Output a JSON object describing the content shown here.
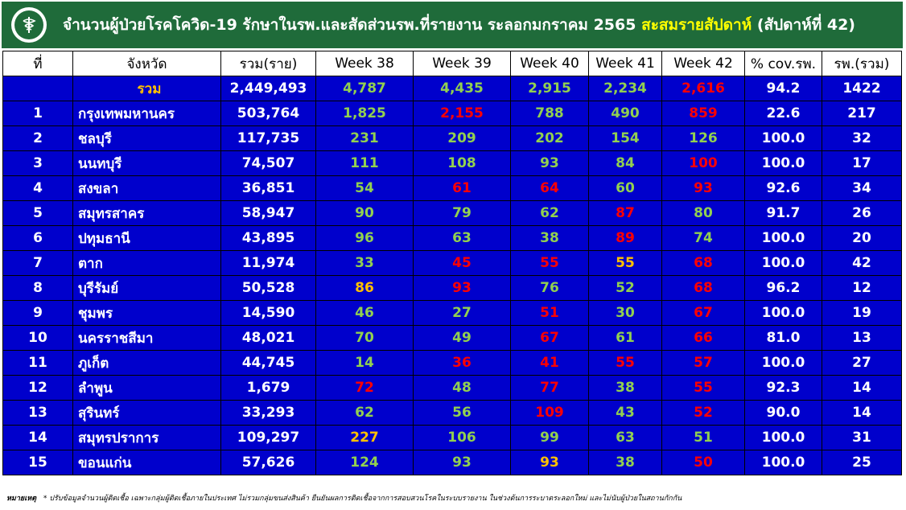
{
  "header": {
    "title_main": "จำนวนผู้ป่วยโรคโควิด-19 รักษาในรพ.และสัดส่วนรพ.ที่รายงาน ระลอกมกราคม 2565",
    "title_highlight": "สะสมรายสัปดาห์",
    "title_suffix": "(สัปดาห์ที่ 42)",
    "logo_icon": "ministry-of-public-health-logo-icon"
  },
  "colors": {
    "header_bg": "#1f6b3a",
    "table_bg": "#0000cc",
    "green": "#92d050",
    "red": "#ff0000",
    "orange": "#ffc000",
    "highlight": "#ffff00"
  },
  "table": {
    "headers": [
      "ที่",
      "จังหวัด",
      "รวม(ราย)",
      "Week 38",
      "Week 39",
      "Week 40",
      "Week 41",
      "Week 42",
      "% cov.รพ.",
      "รพ.(รวม)"
    ],
    "total": {
      "label": "รวม",
      "total": "2,449,493",
      "weeks": [
        {
          "v": "4,787",
          "c": "g"
        },
        {
          "v": "4,435",
          "c": "g"
        },
        {
          "v": "2,915",
          "c": "g"
        },
        {
          "v": "2,234",
          "c": "g"
        },
        {
          "v": "2,616",
          "c": "r"
        }
      ],
      "cov": "94.2",
      "hosp": "1422"
    },
    "rows": [
      {
        "no": "1",
        "prov": "กรุงเทพมหานคร",
        "total": "503,764",
        "weeks": [
          {
            "v": "1,825",
            "c": "g"
          },
          {
            "v": "2,155",
            "c": "r"
          },
          {
            "v": "788",
            "c": "g"
          },
          {
            "v": "490",
            "c": "g"
          },
          {
            "v": "859",
            "c": "r"
          }
        ],
        "cov": "22.6",
        "hosp": "217"
      },
      {
        "no": "2",
        "prov": "ชลบุรี",
        "total": "117,735",
        "weeks": [
          {
            "v": "231",
            "c": "g"
          },
          {
            "v": "209",
            "c": "g"
          },
          {
            "v": "202",
            "c": "g"
          },
          {
            "v": "154",
            "c": "g"
          },
          {
            "v": "126",
            "c": "g"
          }
        ],
        "cov": "100.0",
        "hosp": "32"
      },
      {
        "no": "3",
        "prov": "นนทบุรี",
        "total": "74,507",
        "weeks": [
          {
            "v": "111",
            "c": "g"
          },
          {
            "v": "108",
            "c": "g"
          },
          {
            "v": "93",
            "c": "g"
          },
          {
            "v": "84",
            "c": "g"
          },
          {
            "v": "100",
            "c": "r"
          }
        ],
        "cov": "100.0",
        "hosp": "17"
      },
      {
        "no": "4",
        "prov": "สงขลา",
        "total": "36,851",
        "weeks": [
          {
            "v": "54",
            "c": "g"
          },
          {
            "v": "61",
            "c": "r"
          },
          {
            "v": "64",
            "c": "r"
          },
          {
            "v": "60",
            "c": "g"
          },
          {
            "v": "93",
            "c": "r"
          }
        ],
        "cov": "92.6",
        "hosp": "34"
      },
      {
        "no": "5",
        "prov": "สมุทรสาคร",
        "total": "58,947",
        "weeks": [
          {
            "v": "90",
            "c": "g"
          },
          {
            "v": "79",
            "c": "g"
          },
          {
            "v": "62",
            "c": "g"
          },
          {
            "v": "87",
            "c": "r"
          },
          {
            "v": "80",
            "c": "g"
          }
        ],
        "cov": "91.7",
        "hosp": "26"
      },
      {
        "no": "6",
        "prov": "ปทุมธานี",
        "total": "43,895",
        "weeks": [
          {
            "v": "96",
            "c": "g"
          },
          {
            "v": "63",
            "c": "g"
          },
          {
            "v": "38",
            "c": "g"
          },
          {
            "v": "89",
            "c": "r"
          },
          {
            "v": "74",
            "c": "g"
          }
        ],
        "cov": "100.0",
        "hosp": "20"
      },
      {
        "no": "7",
        "prov": "ตาก",
        "total": "11,974",
        "weeks": [
          {
            "v": "33",
            "c": "g"
          },
          {
            "v": "45",
            "c": "r"
          },
          {
            "v": "55",
            "c": "r"
          },
          {
            "v": "55",
            "c": "o"
          },
          {
            "v": "68",
            "c": "r"
          }
        ],
        "cov": "100.0",
        "hosp": "42"
      },
      {
        "no": "8",
        "prov": "บุรีรัมย์",
        "total": "50,528",
        "weeks": [
          {
            "v": "86",
            "c": "o"
          },
          {
            "v": "93",
            "c": "r"
          },
          {
            "v": "76",
            "c": "g"
          },
          {
            "v": "52",
            "c": "g"
          },
          {
            "v": "68",
            "c": "r"
          }
        ],
        "cov": "96.2",
        "hosp": "12"
      },
      {
        "no": "9",
        "prov": "ชุมพร",
        "total": "14,590",
        "weeks": [
          {
            "v": "46",
            "c": "g"
          },
          {
            "v": "27",
            "c": "g"
          },
          {
            "v": "51",
            "c": "r"
          },
          {
            "v": "30",
            "c": "g"
          },
          {
            "v": "67",
            "c": "r"
          }
        ],
        "cov": "100.0",
        "hosp": "19"
      },
      {
        "no": "10",
        "prov": "นครราชสีมา",
        "total": "48,021",
        "weeks": [
          {
            "v": "70",
            "c": "g"
          },
          {
            "v": "49",
            "c": "g"
          },
          {
            "v": "67",
            "c": "r"
          },
          {
            "v": "61",
            "c": "g"
          },
          {
            "v": "66",
            "c": "r"
          }
        ],
        "cov": "81.0",
        "hosp": "13"
      },
      {
        "no": "11",
        "prov": "ภูเก็ต",
        "total": "44,745",
        "weeks": [
          {
            "v": "14",
            "c": "g"
          },
          {
            "v": "36",
            "c": "r"
          },
          {
            "v": "41",
            "c": "r"
          },
          {
            "v": "55",
            "c": "r"
          },
          {
            "v": "57",
            "c": "r"
          }
        ],
        "cov": "100.0",
        "hosp": "27"
      },
      {
        "no": "12",
        "prov": "ลำพูน",
        "total": "1,679",
        "weeks": [
          {
            "v": "72",
            "c": "r"
          },
          {
            "v": "48",
            "c": "g"
          },
          {
            "v": "77",
            "c": "r"
          },
          {
            "v": "38",
            "c": "g"
          },
          {
            "v": "55",
            "c": "r"
          }
        ],
        "cov": "92.3",
        "hosp": "14"
      },
      {
        "no": "13",
        "prov": "สุรินทร์",
        "total": "33,293",
        "weeks": [
          {
            "v": "62",
            "c": "g"
          },
          {
            "v": "56",
            "c": "g"
          },
          {
            "v": "109",
            "c": "r"
          },
          {
            "v": "43",
            "c": "g"
          },
          {
            "v": "52",
            "c": "r"
          }
        ],
        "cov": "90.0",
        "hosp": "14"
      },
      {
        "no": "14",
        "prov": "สมุทรปราการ",
        "total": "109,297",
        "weeks": [
          {
            "v": "227",
            "c": "o"
          },
          {
            "v": "106",
            "c": "g"
          },
          {
            "v": "99",
            "c": "g"
          },
          {
            "v": "63",
            "c": "g"
          },
          {
            "v": "51",
            "c": "g"
          }
        ],
        "cov": "100.0",
        "hosp": "31"
      },
      {
        "no": "15",
        "prov": "ขอนแก่น",
        "total": "57,626",
        "weeks": [
          {
            "v": "124",
            "c": "g"
          },
          {
            "v": "93",
            "c": "g"
          },
          {
            "v": "93",
            "c": "o"
          },
          {
            "v": "38",
            "c": "g"
          },
          {
            "v": "50",
            "c": "r"
          }
        ],
        "cov": "100.0",
        "hosp": "25"
      }
    ]
  },
  "footnote": {
    "label": "หมายเหตุ",
    "text": "* ปรับข้อมูลจำนวนผู้ติดเชื้อ เฉพาะกลุ่มผู้ติดเชื้อภายในประเทศ ไม่รวมกลุ่มขนส่งสินค้า ยืนยันผลการติดเชื้อจากการสอบสวนโรคในระบบรายงาน ในช่วงต้นการระบาดระลอกใหม่ และไม่นับผู้ป่วยในสถานกักกัน"
  }
}
